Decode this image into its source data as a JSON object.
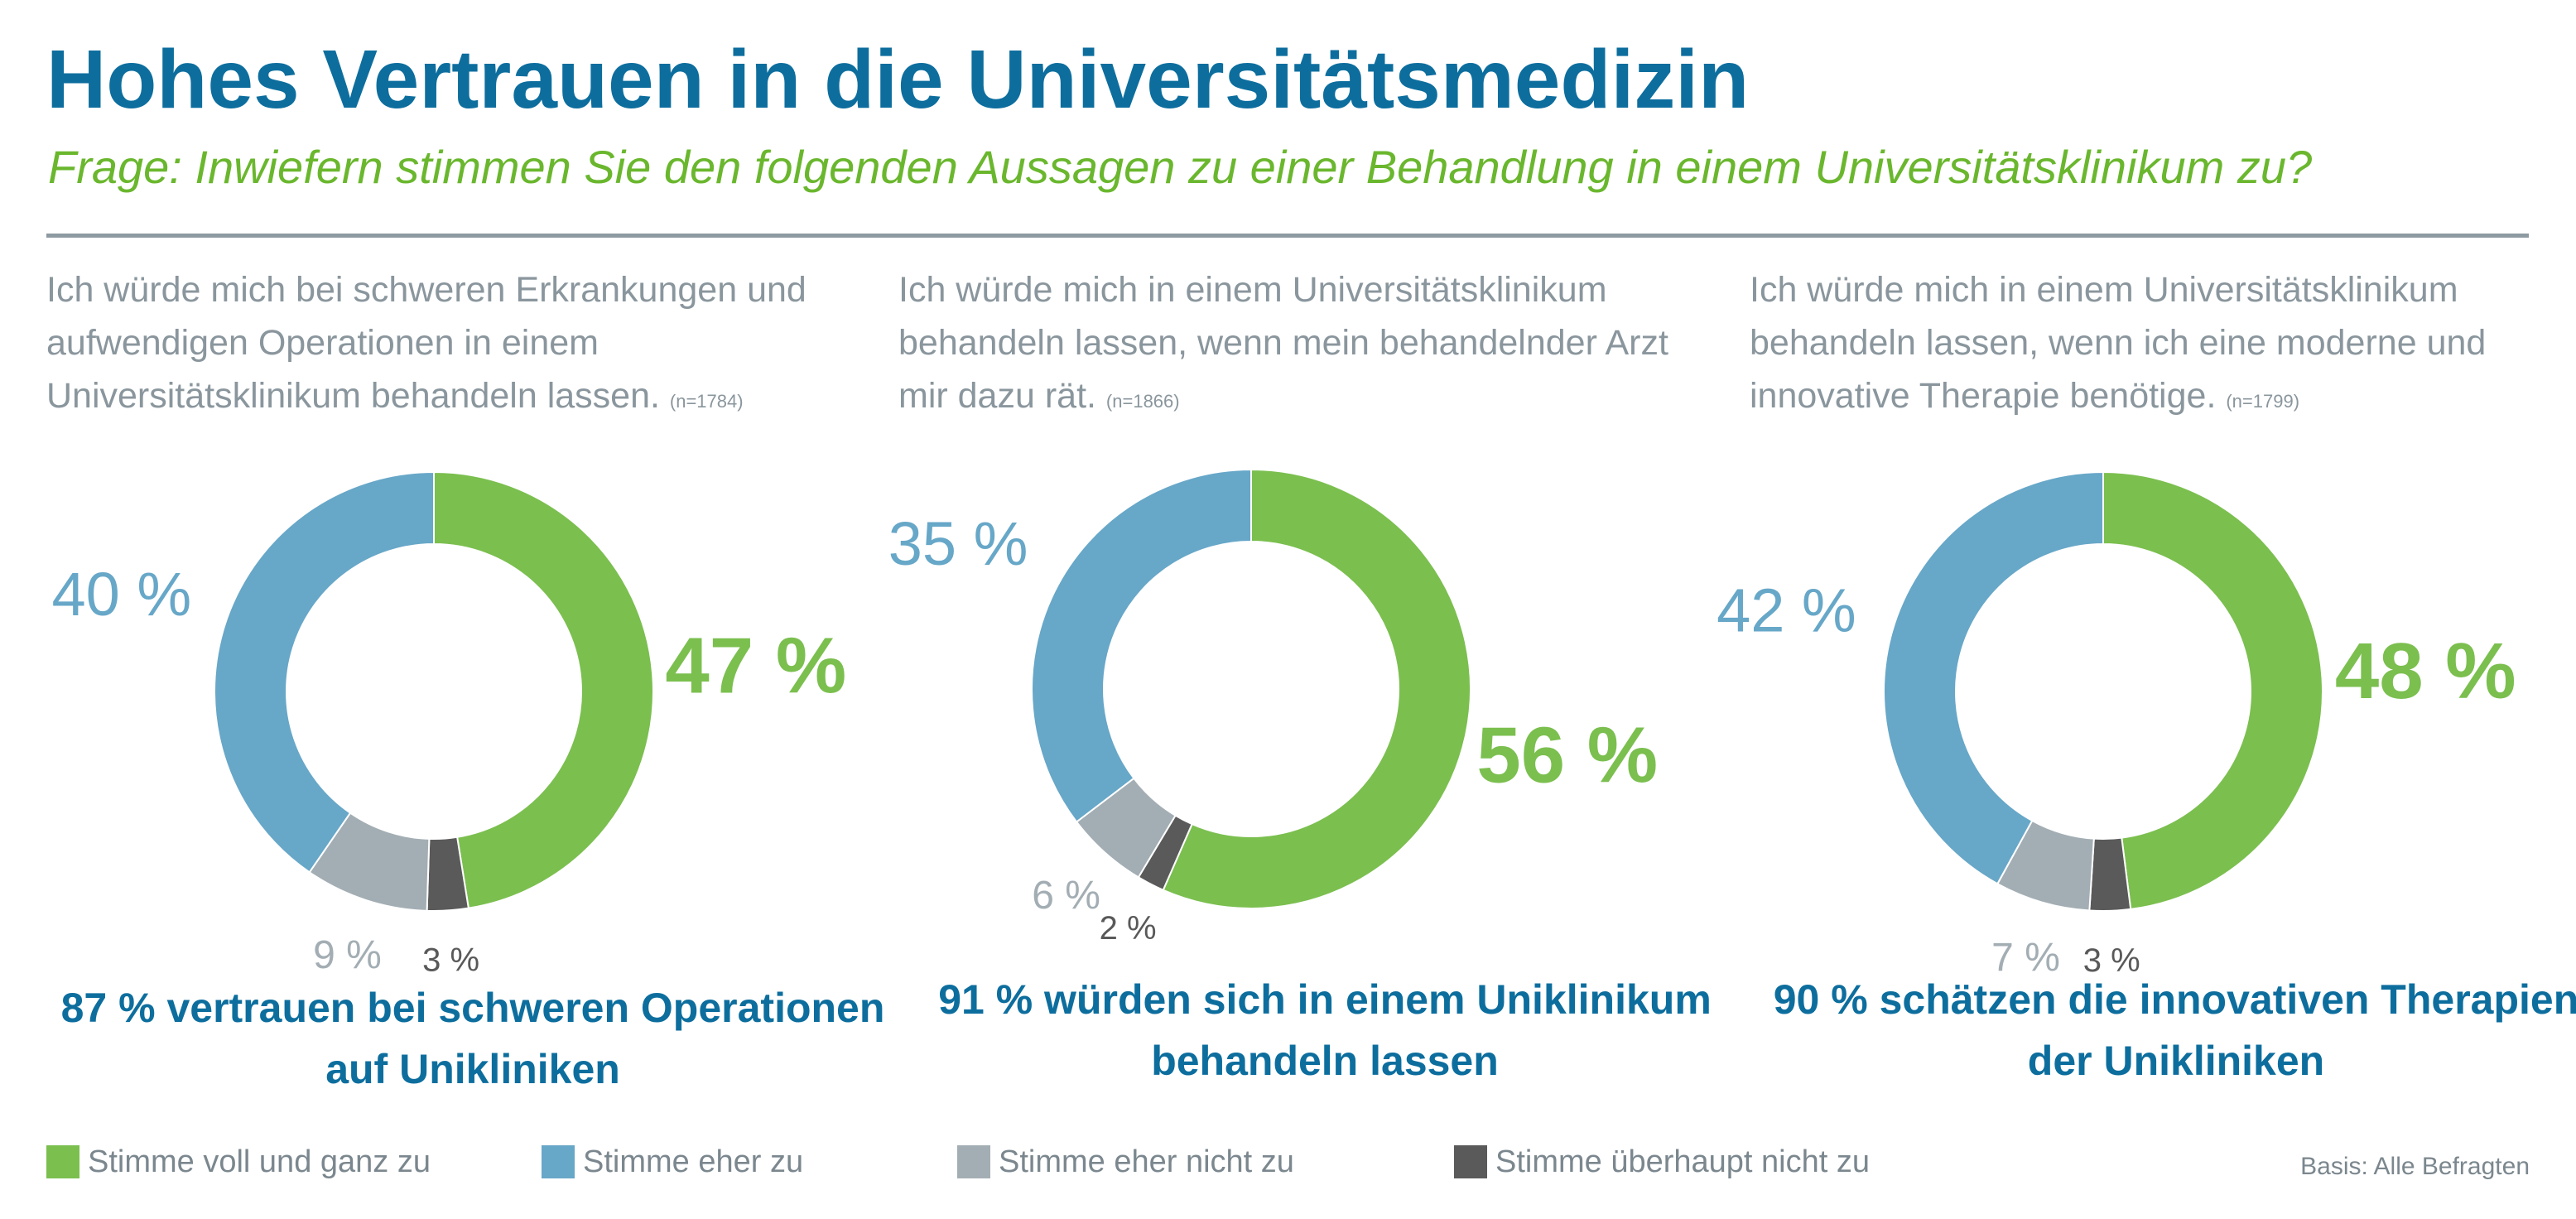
{
  "title": "Hohes Vertrauen in die Universitätsmedizin",
  "subtitle": "Frage: Inwiefern stimmen Sie den folgenden Aussagen zu einer Behandlung in einem Universitätsklinikum zu?",
  "colors": {
    "title": "#0d6e9e",
    "subtitle": "#6ab72e",
    "statement_text": "#8a969d",
    "legend_text": "#7b878e",
    "conclusion_text": "#0d6e9e",
    "rule": "#8e9aa1"
  },
  "chart_data": [
    {
      "type": "pie",
      "donut": true,
      "statement": "Ich würde mich bei schweren Erkrankungen und aufwendigen Operationen in einem Universitätsklinikum behandeln lassen.",
      "sample_note": "(n=1784)",
      "segments": [
        {
          "category": "Stimme voll und ganz zu",
          "value": 47,
          "label": "47 %"
        },
        {
          "category": "Stimme überhaupt nicht zu",
          "value": 3,
          "label": "3 %"
        },
        {
          "category": "Stimme eher nicht zu",
          "value": 9,
          "label": "9 %"
        },
        {
          "category": "Stimme eher zu",
          "value": 40,
          "label": "40 %"
        }
      ],
      "conclusion": "87 % vertrauen bei schweren Operationen auf Unikliniken"
    },
    {
      "type": "pie",
      "donut": true,
      "statement": "Ich würde mich in einem Universitätsklinikum behandeln lassen, wenn mein behandelnder Arzt mir dazu rät.",
      "sample_note": "(n=1866)",
      "segments": [
        {
          "category": "Stimme voll und ganz zu",
          "value": 56,
          "label": "56 %"
        },
        {
          "category": "Stimme überhaupt nicht zu",
          "value": 2,
          "label": "2 %"
        },
        {
          "category": "Stimme eher nicht zu",
          "value": 6,
          "label": "6 %"
        },
        {
          "category": "Stimme eher zu",
          "value": 35,
          "label": "35 %"
        }
      ],
      "conclusion": "91 % würden sich in einem Uniklinikum behandeln lassen"
    },
    {
      "type": "pie",
      "donut": true,
      "statement": "Ich würde mich in einem Universitätsklinikum behandeln lassen, wenn ich eine moderne und innovative Therapie benötige.",
      "sample_note": "(n=1799)",
      "segments": [
        {
          "category": "Stimme voll und ganz zu",
          "value": 48,
          "label": "48 %"
        },
        {
          "category": "Stimme überhaupt nicht zu",
          "value": 3,
          "label": "3 %"
        },
        {
          "category": "Stimme eher nicht zu",
          "value": 7,
          "label": "7 %"
        },
        {
          "category": "Stimme eher zu",
          "value": 42,
          "label": "42 %"
        }
      ],
      "conclusion": "90 % schätzen die innovativen Therapien der Unikliniken"
    }
  ],
  "legend": [
    {
      "label": "Stimme voll und ganz zu",
      "color": "#7bbf4f"
    },
    {
      "label": "Stimme eher zu",
      "color": "#67a7c8"
    },
    {
      "label": "Stimme eher nicht zu",
      "color": "#a3aeb4"
    },
    {
      "label": "Stimme überhaupt nicht zu",
      "color": "#5a5a5a"
    }
  ],
  "basis": "Basis: Alle Befragten"
}
